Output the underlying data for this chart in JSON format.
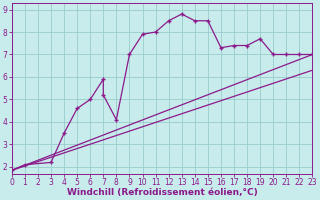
{
  "line1_x": [
    0,
    1,
    3,
    4,
    5,
    6,
    7,
    7,
    8,
    9,
    10,
    11,
    12,
    13,
    14,
    15,
    16,
    17,
    18,
    19,
    20,
    21,
    22,
    23
  ],
  "line1_y": [
    1.85,
    2.1,
    2.2,
    3.5,
    4.6,
    5.0,
    5.9,
    5.2,
    4.1,
    7.0,
    7.9,
    8.0,
    8.5,
    8.8,
    8.5,
    8.5,
    7.3,
    7.4,
    7.4,
    7.7,
    7.0,
    7.0,
    7.0,
    7.0
  ],
  "line2_x": [
    0,
    23
  ],
  "line2_y": [
    1.85,
    7.0
  ],
  "line3_x": [
    0,
    23
  ],
  "line3_y": [
    1.85,
    6.3
  ],
  "line_color": "#8B1A8B",
  "bg_color": "#C8ECEC",
  "grid_color": "#99CCCC",
  "xlabel": "Windchill (Refroidissement éolien,°C)",
  "xlim": [
    0,
    23
  ],
  "ylim": [
    1.7,
    9.3
  ],
  "xticks": [
    0,
    1,
    2,
    3,
    4,
    5,
    6,
    7,
    8,
    9,
    10,
    11,
    12,
    13,
    14,
    15,
    16,
    17,
    18,
    19,
    20,
    21,
    22,
    23
  ],
  "yticks": [
    2,
    3,
    4,
    5,
    6,
    7,
    8,
    9
  ],
  "label_fontsize": 6.5,
  "tick_fontsize": 5.5
}
